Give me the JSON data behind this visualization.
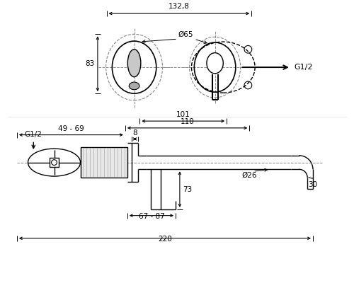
{
  "bg_color": "#ffffff",
  "line_color": "#000000",
  "dashed_color": "#888888",
  "figsize": [
    5.0,
    4.0
  ],
  "dpi": 100,
  "labels": {
    "dim_1328": "132,8",
    "dim_65": "Ø65",
    "dim_83": "83",
    "dim_101": "101",
    "dim_110": "110",
    "dim_4969": "49 - 69",
    "dim_8": "8",
    "dim_73": "73",
    "dim_6787": "67 - 87",
    "dim_220": "220",
    "dim_26": "Ø26",
    "dim_30": "30",
    "label_G12_top": "G1/2",
    "label_G12_bot": "G1/2"
  }
}
